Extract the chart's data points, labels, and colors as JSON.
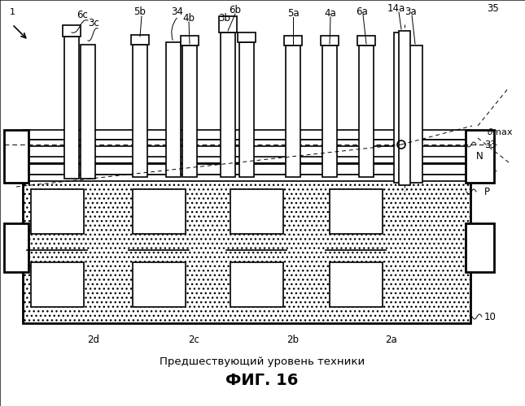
{
  "title": "ФИГ. 16",
  "subtitle": "Предшествующий уровень техники",
  "bg_color": "#ffffff",
  "lc": "#000000",
  "fig_width": 6.45,
  "fig_height": 5.0,
  "dpi": 100,
  "labels_top": [
    [
      "6c",
      103,
      22
    ],
    [
      "3c",
      115,
      32
    ],
    [
      "5b",
      174,
      18
    ],
    [
      "34",
      219,
      18
    ],
    [
      "4b",
      232,
      26
    ],
    [
      "6b",
      289,
      16
    ],
    [
      "3b",
      278,
      26
    ],
    [
      "5a",
      361,
      20
    ],
    [
      "4a",
      406,
      20
    ],
    [
      "6a",
      446,
      18
    ],
    [
      "14a",
      490,
      14
    ],
    [
      "3a",
      506,
      18
    ],
    [
      "35",
      608,
      14
    ],
    [
      "33",
      593,
      178
    ],
    [
      "P",
      597,
      236
    ],
    [
      "10",
      597,
      390
    ],
    [
      "N",
      584,
      192
    ]
  ],
  "labels_bottom": [
    [
      "2d",
      115,
      418
    ],
    [
      "2c",
      238,
      418
    ],
    [
      "2b",
      360,
      418
    ],
    [
      "2a",
      480,
      418
    ]
  ]
}
